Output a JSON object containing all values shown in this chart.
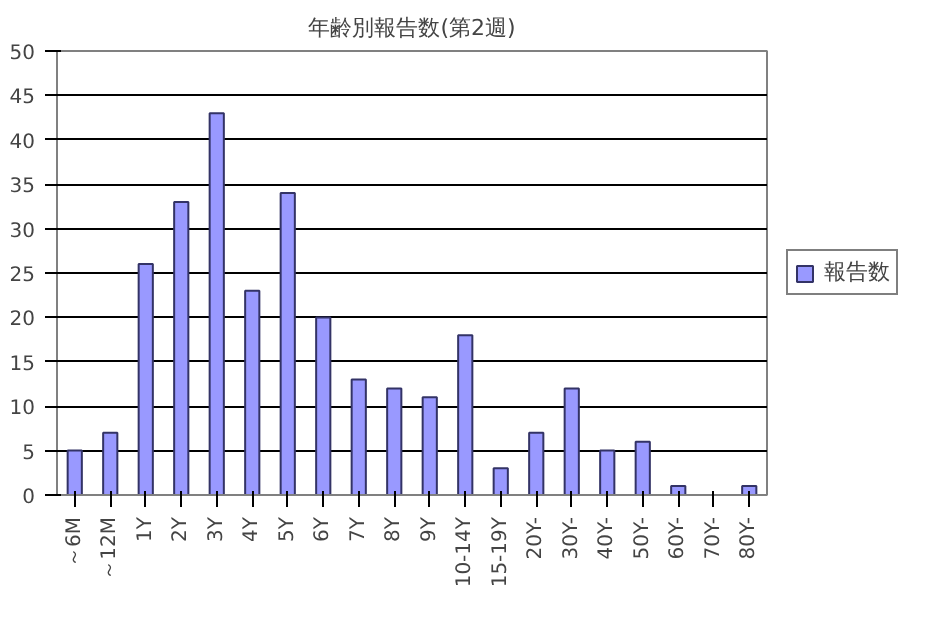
{
  "chart_data": {
    "type": "bar",
    "title": "年齢別報告数(第2週)",
    "categories": [
      "～6M",
      "～12M",
      "1Y",
      "2Y",
      "3Y",
      "4Y",
      "5Y",
      "6Y",
      "7Y",
      "8Y",
      "9Y",
      "10-14Y",
      "15-19Y",
      "20Y-",
      "30Y-",
      "40Y-",
      "50Y-",
      "60Y-",
      "70Y-",
      "80Y-"
    ],
    "series": [
      {
        "name": "報告数",
        "color": "#9999ff",
        "values": [
          5,
          7,
          26,
          33,
          43,
          23,
          34,
          20,
          13,
          12,
          11,
          18,
          3,
          7,
          12,
          5,
          6,
          1,
          0,
          1
        ]
      }
    ],
    "ylim": [
      0,
      50
    ],
    "yticks": [
      0,
      5,
      10,
      15,
      20,
      25,
      30,
      35,
      40,
      45,
      50
    ],
    "grid": "y",
    "legend": "right"
  }
}
